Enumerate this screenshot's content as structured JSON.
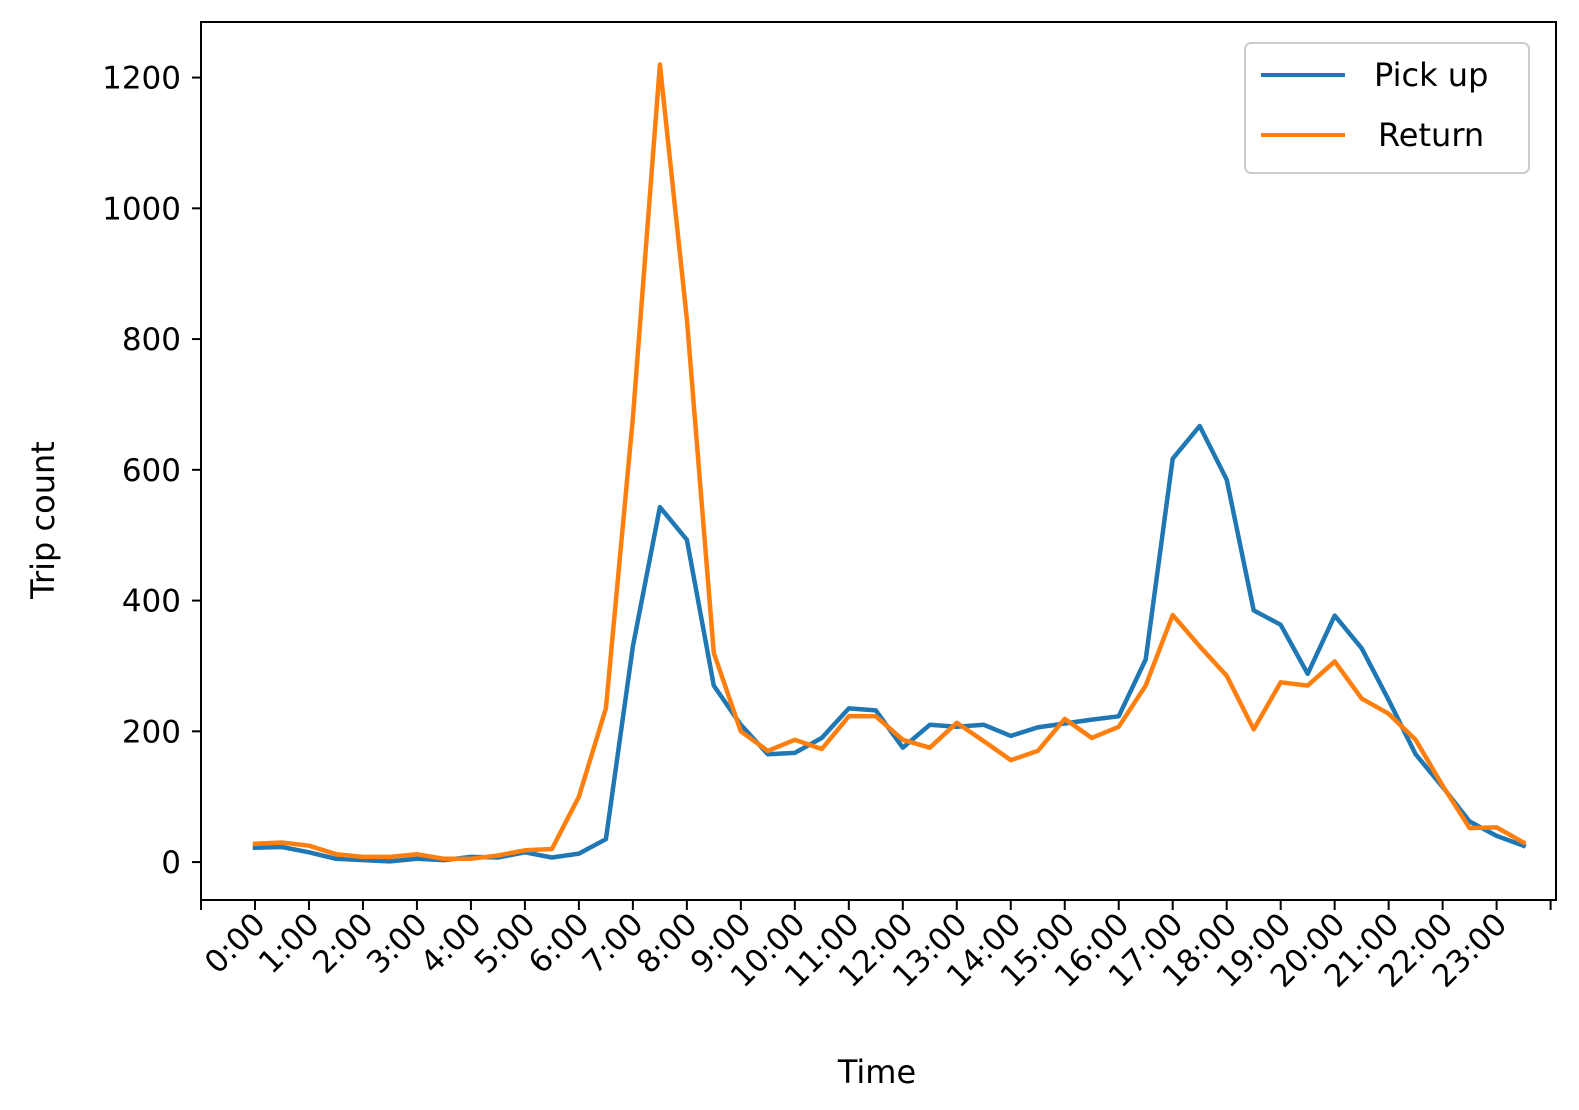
{
  "chart_data": {
    "type": "line",
    "title": "",
    "xlabel": "Time",
    "ylabel": "Trip count",
    "x_tick_labels": [
      "0:00",
      "1:00",
      "2:00",
      "3:00",
      "4:00",
      "5:00",
      "6:00",
      "7:00",
      "8:00",
      "9:00",
      "10:00",
      "11:00",
      "12:00",
      "13:00",
      "14:00",
      "15:00",
      "16:00",
      "17:00",
      "18:00",
      "19:00",
      "20:00",
      "21:00",
      "22:00",
      "23:00"
    ],
    "x_tick_hours": [
      0,
      1,
      2,
      3,
      4,
      5,
      6,
      7,
      8,
      9,
      10,
      11,
      12,
      13,
      14,
      15,
      16,
      17,
      18,
      19,
      20,
      21,
      22,
      23
    ],
    "y_ticks": [
      0,
      200,
      400,
      600,
      800,
      1000,
      1200
    ],
    "xlim": [
      -1.0,
      24.1
    ],
    "ylim": [
      -58,
      1285
    ],
    "grid": false,
    "legend_position": "top-right",
    "x": [
      0,
      0.5,
      1,
      1.5,
      2,
      2.5,
      3,
      3.5,
      4,
      4.5,
      5,
      5.5,
      6,
      6.5,
      7,
      7.5,
      8,
      8.5,
      9,
      9.5,
      10,
      10.5,
      11,
      11.5,
      12,
      12.5,
      13,
      13.5,
      14,
      14.5,
      15,
      15.5,
      16,
      16.5,
      17,
      17.5,
      18,
      18.5,
      19,
      19.5,
      20,
      20.5,
      21,
      21.5,
      22,
      22.5,
      23,
      23.5
    ],
    "series": [
      {
        "name": "Pick up",
        "color": "#1f77b4",
        "values": [
          22,
          23,
          15,
          5,
          3,
          1,
          5,
          3,
          8,
          7,
          15,
          7,
          13,
          35,
          330,
          543,
          493,
          270,
          210,
          165,
          167,
          190,
          235,
          232,
          175,
          210,
          207,
          210,
          193,
          206,
          212,
          218,
          223,
          310,
          617,
          667,
          585,
          385,
          363,
          288,
          377,
          327,
          248,
          165,
          115,
          62,
          40,
          25
        ]
      },
      {
        "name": "Return",
        "color": "#ff7f0e",
        "values": [
          28,
          30,
          25,
          12,
          8,
          8,
          12,
          5,
          5,
          10,
          18,
          20,
          100,
          235,
          680,
          1220,
          830,
          320,
          200,
          170,
          187,
          173,
          223,
          223,
          187,
          175,
          213,
          185,
          156,
          170,
          219,
          190,
          207,
          270,
          378,
          330,
          285,
          203,
          275,
          270,
          307,
          250,
          227,
          187,
          117,
          52,
          53,
          30
        ]
      }
    ]
  }
}
